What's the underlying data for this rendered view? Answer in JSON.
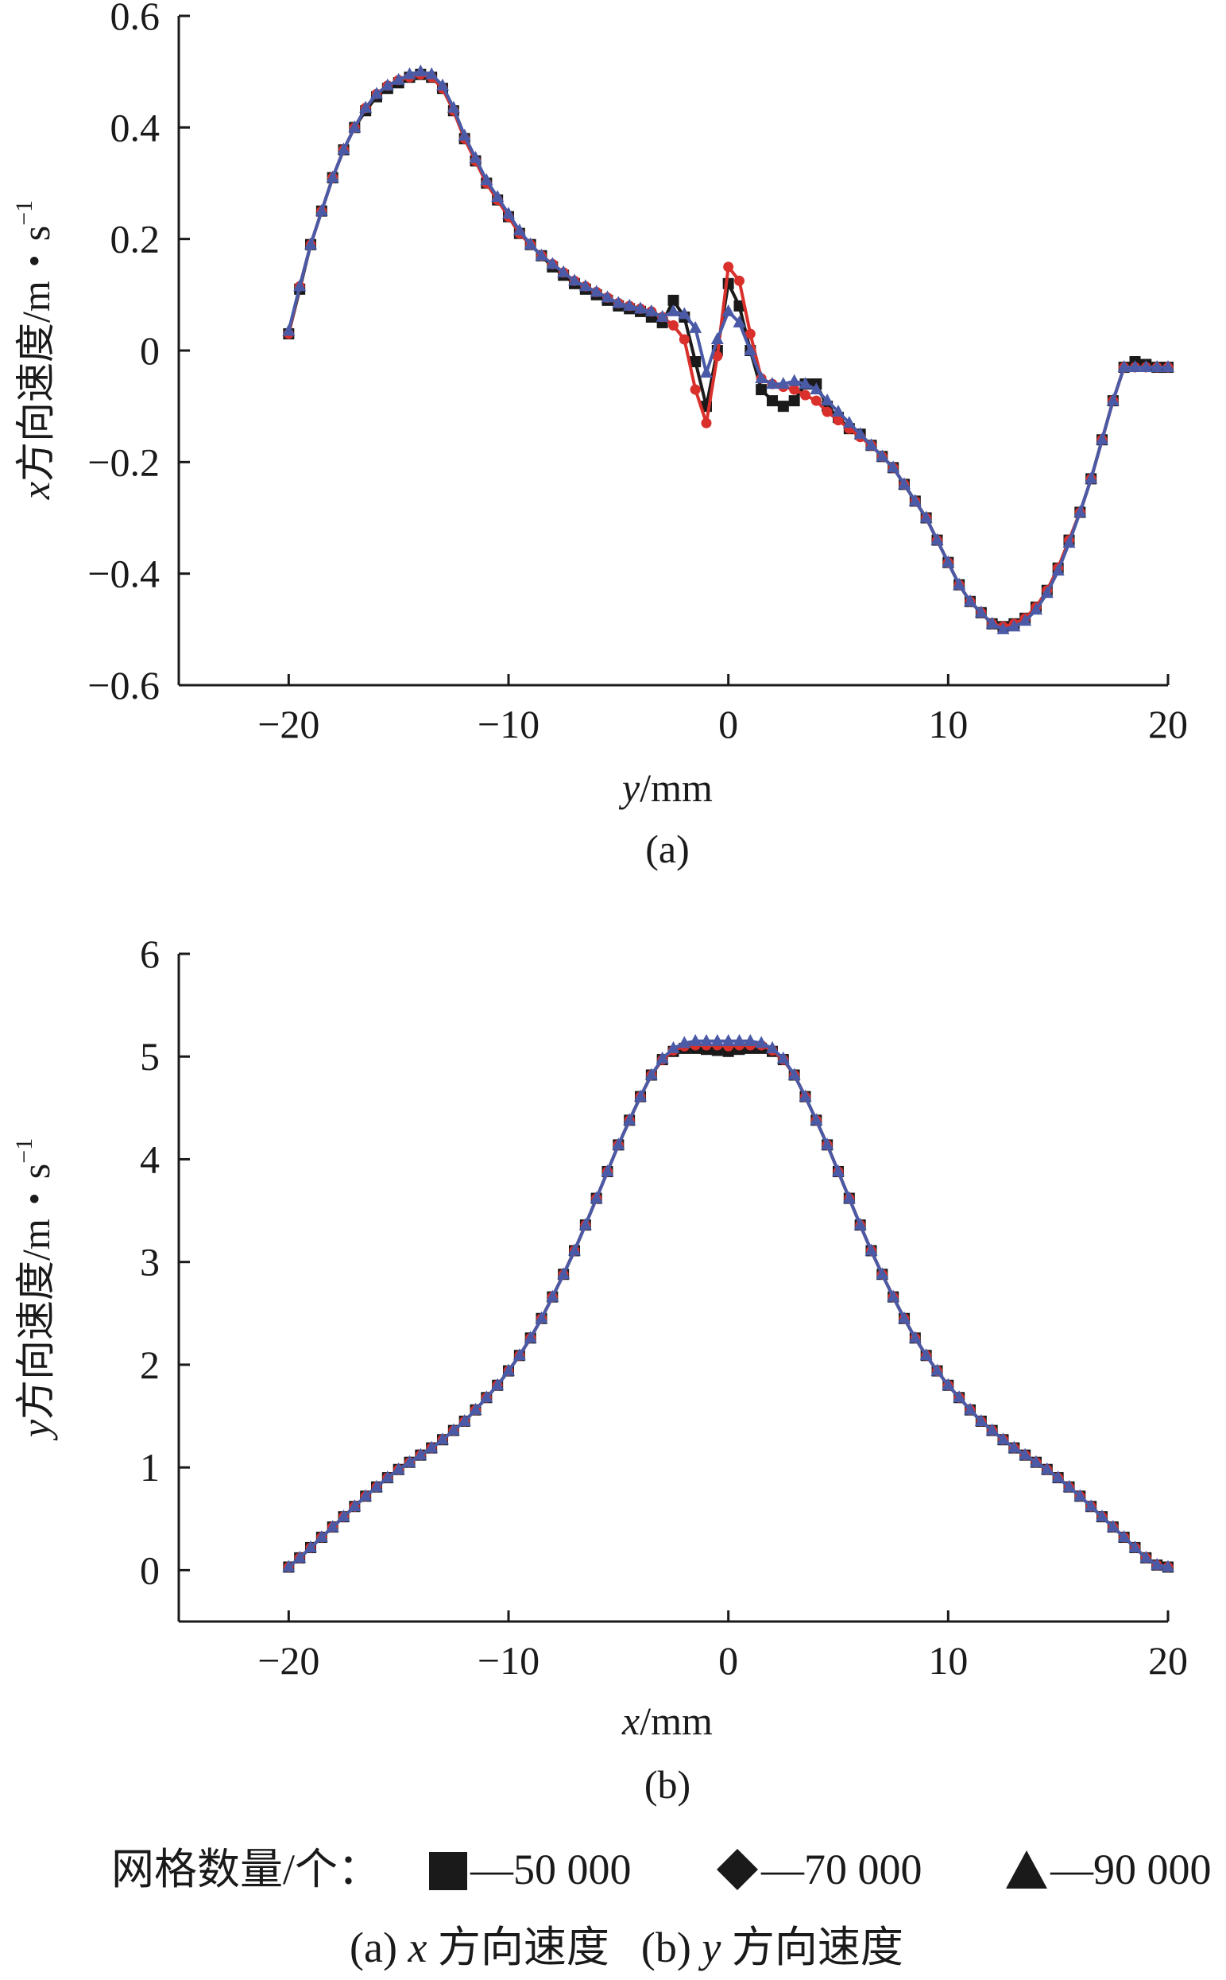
{
  "chart_data": [
    {
      "type": "line",
      "panel_label": "(a)",
      "xlabel_var": "y",
      "xlabel_unit": "/mm",
      "ylabel_var": "x",
      "ylabel_text": "方向速度/m・s",
      "ylabel_sup": "−1",
      "xlim": [
        -25,
        20
      ],
      "ylim": [
        -0.6,
        0.6
      ],
      "x_ticks": [
        -20,
        -10,
        0,
        10,
        20
      ],
      "x_tick_labels": [
        "−20",
        "−10",
        "0",
        "10",
        "20"
      ],
      "y_ticks": [
        0.6,
        0.4,
        0.2,
        0,
        -0.2,
        -0.4,
        -0.6
      ],
      "y_tick_labels": [
        "0.6",
        "0.4",
        "0.2",
        "0",
        "−0.2",
        "−0.4",
        "−0.6"
      ],
      "x": [
        -20,
        -19.5,
        -19,
        -18.5,
        -18,
        -17.5,
        -17,
        -16.5,
        -16,
        -15.5,
        -15,
        -14.5,
        -14,
        -13.5,
        -13,
        -12.5,
        -12,
        -11.5,
        -11,
        -10.5,
        -10,
        -9.5,
        -9,
        -8.5,
        -8,
        -7.5,
        -7,
        -6.5,
        -6,
        -5.5,
        -5,
        -4.5,
        -4,
        -3.5,
        -3,
        -2.5,
        -2,
        -1.5,
        -1,
        -0.5,
        0,
        0.5,
        1,
        1.5,
        2,
        2.5,
        3,
        3.5,
        4,
        4.5,
        5,
        5.5,
        6,
        6.5,
        7,
        7.5,
        8,
        8.5,
        9,
        9.5,
        10,
        10.5,
        11,
        11.5,
        12,
        12.5,
        13,
        13.5,
        14,
        14.5,
        15,
        15.5,
        16,
        16.5,
        17,
        17.5,
        18,
        18.5,
        19,
        19.5,
        20
      ],
      "series": [
        {
          "name": "50 000",
          "marker": "square",
          "color": "#1a1a1a",
          "values": [
            0.03,
            0.11,
            0.19,
            0.25,
            0.31,
            0.36,
            0.4,
            0.43,
            0.455,
            0.47,
            0.48,
            0.49,
            0.495,
            0.49,
            0.47,
            0.43,
            0.38,
            0.34,
            0.3,
            0.27,
            0.24,
            0.21,
            0.19,
            0.17,
            0.15,
            0.135,
            0.12,
            0.11,
            0.1,
            0.09,
            0.08,
            0.075,
            0.07,
            0.06,
            0.05,
            0.09,
            0.06,
            -0.02,
            -0.1,
            0.0,
            0.12,
            0.08,
            0.0,
            -0.07,
            -0.09,
            -0.1,
            -0.09,
            -0.06,
            -0.06,
            -0.1,
            -0.12,
            -0.14,
            -0.15,
            -0.17,
            -0.19,
            -0.21,
            -0.24,
            -0.27,
            -0.3,
            -0.34,
            -0.38,
            -0.42,
            -0.45,
            -0.47,
            -0.49,
            -0.495,
            -0.49,
            -0.48,
            -0.46,
            -0.43,
            -0.39,
            -0.34,
            -0.29,
            -0.23,
            -0.16,
            -0.09,
            -0.03,
            -0.02,
            -0.025,
            -0.03,
            -0.03
          ]
        },
        {
          "name": "70 000",
          "marker": "diamond",
          "color": "#d9302c",
          "values": [
            0.03,
            0.115,
            0.19,
            0.25,
            0.31,
            0.36,
            0.4,
            0.435,
            0.46,
            0.475,
            0.485,
            0.49,
            0.495,
            0.49,
            0.47,
            0.43,
            0.38,
            0.34,
            0.3,
            0.27,
            0.24,
            0.21,
            0.19,
            0.17,
            0.155,
            0.14,
            0.125,
            0.115,
            0.105,
            0.095,
            0.085,
            0.08,
            0.075,
            0.07,
            0.06,
            0.045,
            0.02,
            -0.07,
            -0.13,
            -0.01,
            0.15,
            0.125,
            0.03,
            -0.05,
            -0.06,
            -0.065,
            -0.07,
            -0.08,
            -0.09,
            -0.11,
            -0.125,
            -0.14,
            -0.155,
            -0.17,
            -0.19,
            -0.21,
            -0.24,
            -0.27,
            -0.3,
            -0.34,
            -0.38,
            -0.42,
            -0.45,
            -0.47,
            -0.49,
            -0.495,
            -0.49,
            -0.48,
            -0.46,
            -0.43,
            -0.39,
            -0.34,
            -0.29,
            -0.23,
            -0.16,
            -0.09,
            -0.03,
            -0.03,
            -0.03,
            -0.03,
            -0.03
          ]
        },
        {
          "name": "90 000",
          "marker": "triangle",
          "color": "#4a5aa6",
          "values": [
            0.035,
            0.115,
            0.19,
            0.25,
            0.31,
            0.36,
            0.4,
            0.435,
            0.46,
            0.475,
            0.485,
            0.495,
            0.5,
            0.495,
            0.475,
            0.435,
            0.385,
            0.345,
            0.305,
            0.275,
            0.245,
            0.215,
            0.19,
            0.17,
            0.155,
            0.14,
            0.125,
            0.115,
            0.105,
            0.095,
            0.085,
            0.08,
            0.075,
            0.07,
            0.06,
            0.07,
            0.065,
            0.04,
            -0.04,
            0.02,
            0.07,
            0.05,
            0.0,
            -0.05,
            -0.06,
            -0.06,
            -0.055,
            -0.06,
            -0.07,
            -0.09,
            -0.11,
            -0.13,
            -0.15,
            -0.17,
            -0.19,
            -0.21,
            -0.24,
            -0.27,
            -0.3,
            -0.34,
            -0.38,
            -0.42,
            -0.45,
            -0.47,
            -0.49,
            -0.5,
            -0.495,
            -0.485,
            -0.465,
            -0.435,
            -0.395,
            -0.345,
            -0.29,
            -0.23,
            -0.16,
            -0.09,
            -0.03,
            -0.03,
            -0.03,
            -0.03,
            -0.03
          ]
        }
      ]
    },
    {
      "type": "line",
      "panel_label": "(b)",
      "xlabel_var": "x",
      "xlabel_unit": "/mm",
      "ylabel_var": "y",
      "ylabel_text": "方向速度/m・s",
      "ylabel_sup": "−1",
      "xlim": [
        -25,
        20
      ],
      "ylim": [
        -0.5,
        6
      ],
      "x_ticks": [
        -20,
        -10,
        0,
        10,
        20
      ],
      "x_tick_labels": [
        "−20",
        "−10",
        "0",
        "10",
        "20"
      ],
      "y_ticks": [
        6,
        5,
        4,
        3,
        2,
        1,
        0
      ],
      "y_tick_labels": [
        "6",
        "5",
        "4",
        "3",
        "2",
        "1",
        "0"
      ],
      "x": [
        -20,
        -19.5,
        -19,
        -18.5,
        -18,
        -17.5,
        -17,
        -16.5,
        -16,
        -15.5,
        -15,
        -14.5,
        -14,
        -13.5,
        -13,
        -12.5,
        -12,
        -11.5,
        -11,
        -10.5,
        -10,
        -9.5,
        -9,
        -8.5,
        -8,
        -7.5,
        -7,
        -6.5,
        -6,
        -5.5,
        -5,
        -4.5,
        -4,
        -3.5,
        -3,
        -2.5,
        -2,
        -1.5,
        -1,
        -0.5,
        0,
        0.5,
        1,
        1.5,
        2,
        2.5,
        3,
        3.5,
        4,
        4.5,
        5,
        5.5,
        6,
        6.5,
        7,
        7.5,
        8,
        8.5,
        9,
        9.5,
        10,
        10.5,
        11,
        11.5,
        12,
        12.5,
        13,
        13.5,
        14,
        14.5,
        15,
        15.5,
        16,
        16.5,
        17,
        17.5,
        18,
        18.5,
        19,
        19.5,
        20
      ],
      "series": [
        {
          "name": "50 000",
          "marker": "square",
          "color": "#1a1a1a",
          "values": [
            0.03,
            0.12,
            0.22,
            0.32,
            0.42,
            0.52,
            0.62,
            0.72,
            0.81,
            0.9,
            0.98,
            1.05,
            1.12,
            1.19,
            1.27,
            1.36,
            1.45,
            1.56,
            1.68,
            1.8,
            1.94,
            2.09,
            2.26,
            2.45,
            2.66,
            2.88,
            3.11,
            3.36,
            3.62,
            3.88,
            4.14,
            4.38,
            4.61,
            4.82,
            4.97,
            5.05,
            5.08,
            5.08,
            5.07,
            5.06,
            5.05,
            5.07,
            5.08,
            5.08,
            5.05,
            4.97,
            4.82,
            4.61,
            4.38,
            4.14,
            3.88,
            3.62,
            3.36,
            3.11,
            2.88,
            2.66,
            2.45,
            2.26,
            2.09,
            1.94,
            1.8,
            1.68,
            1.56,
            1.45,
            1.36,
            1.27,
            1.19,
            1.12,
            1.05,
            0.98,
            0.9,
            0.81,
            0.72,
            0.62,
            0.52,
            0.42,
            0.32,
            0.22,
            0.12,
            0.05,
            0.03
          ]
        },
        {
          "name": "70 000",
          "marker": "diamond",
          "color": "#d9302c",
          "values": [
            0.03,
            0.12,
            0.22,
            0.32,
            0.42,
            0.52,
            0.62,
            0.72,
            0.81,
            0.9,
            0.98,
            1.05,
            1.12,
            1.19,
            1.27,
            1.36,
            1.45,
            1.56,
            1.68,
            1.8,
            1.94,
            2.09,
            2.26,
            2.45,
            2.66,
            2.88,
            3.11,
            3.36,
            3.62,
            3.88,
            4.14,
            4.38,
            4.61,
            4.82,
            4.97,
            5.06,
            5.1,
            5.11,
            5.11,
            5.11,
            5.1,
            5.11,
            5.11,
            5.11,
            5.06,
            4.97,
            4.82,
            4.61,
            4.38,
            4.14,
            3.88,
            3.62,
            3.36,
            3.11,
            2.88,
            2.66,
            2.45,
            2.26,
            2.09,
            1.94,
            1.8,
            1.68,
            1.56,
            1.45,
            1.36,
            1.27,
            1.19,
            1.12,
            1.05,
            0.98,
            0.9,
            0.81,
            0.72,
            0.62,
            0.52,
            0.42,
            0.32,
            0.22,
            0.12,
            0.05,
            0.03
          ]
        },
        {
          "name": "90 000",
          "marker": "triangle",
          "color": "#4a5aa6",
          "values": [
            0.03,
            0.12,
            0.22,
            0.32,
            0.42,
            0.52,
            0.62,
            0.72,
            0.81,
            0.9,
            0.98,
            1.05,
            1.12,
            1.19,
            1.27,
            1.36,
            1.45,
            1.56,
            1.68,
            1.8,
            1.94,
            2.09,
            2.26,
            2.45,
            2.66,
            2.88,
            3.11,
            3.36,
            3.62,
            3.88,
            4.14,
            4.38,
            4.61,
            4.82,
            4.98,
            5.08,
            5.13,
            5.15,
            5.15,
            5.15,
            5.15,
            5.15,
            5.15,
            5.13,
            5.08,
            4.98,
            4.82,
            4.61,
            4.38,
            4.14,
            3.88,
            3.62,
            3.36,
            3.11,
            2.88,
            2.66,
            2.45,
            2.26,
            2.09,
            1.94,
            1.8,
            1.68,
            1.56,
            1.45,
            1.36,
            1.27,
            1.19,
            1.12,
            1.05,
            0.98,
            0.9,
            0.81,
            0.72,
            0.62,
            0.52,
            0.42,
            0.32,
            0.22,
            0.12,
            0.05,
            0.03
          ]
        }
      ]
    }
  ],
  "legend": {
    "prefix": "网格数量/个：",
    "items": [
      {
        "marker": "square",
        "label": "—50 000"
      },
      {
        "marker": "diamond",
        "label": "—70 000"
      },
      {
        "marker": "triangle",
        "label": "—90 000"
      }
    ]
  },
  "caption": {
    "a_prefix": "(a) ",
    "a_var": "x",
    "a_text": " 方向速度",
    "b_prefix": "(b) ",
    "b_var": "y",
    "b_text": " 方向速度"
  }
}
